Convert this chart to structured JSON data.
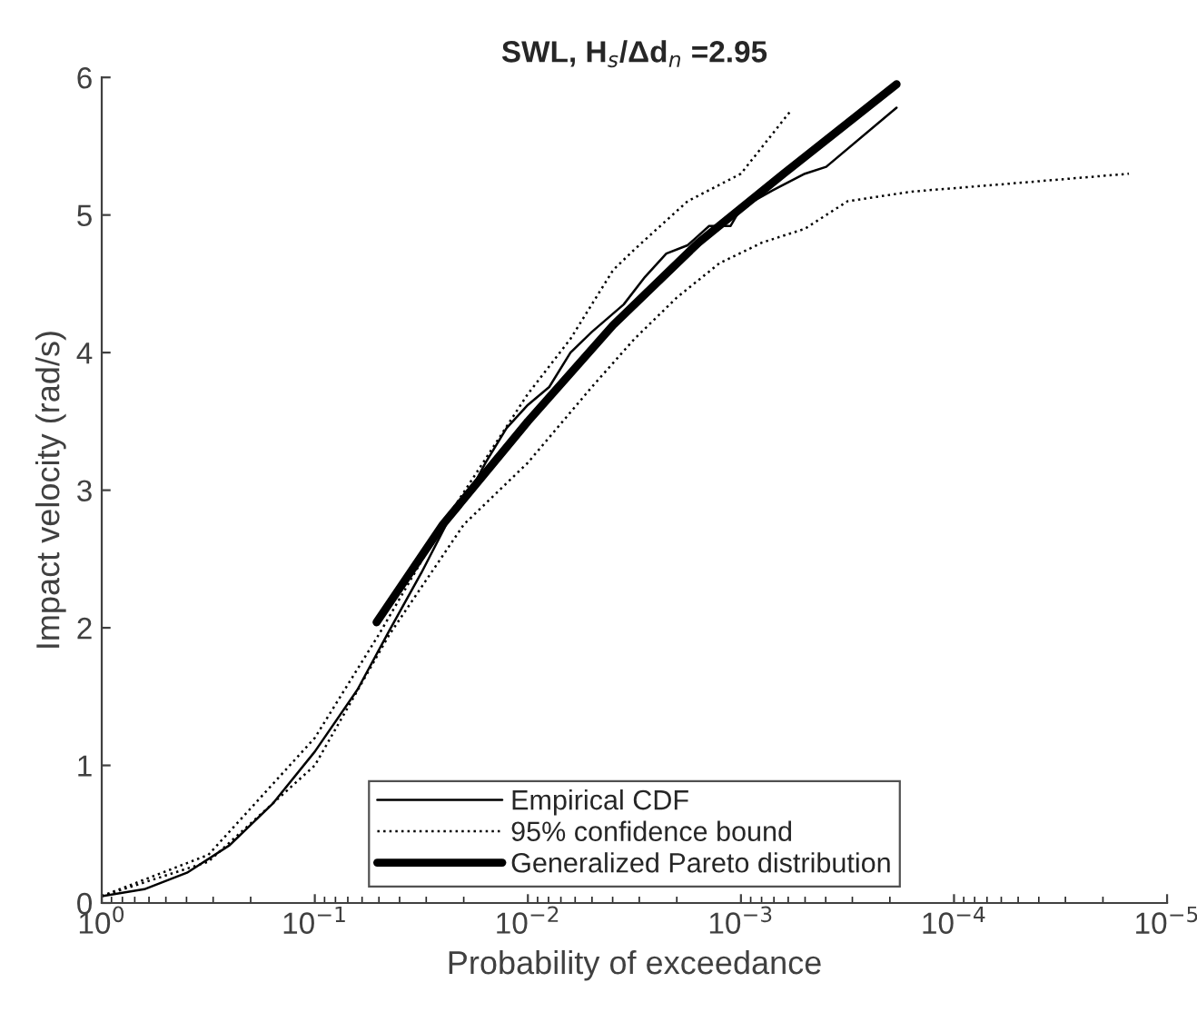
{
  "chart_data": {
    "type": "line",
    "title": "SWL, H$_{s}$/Δd$_{n}$ =2.95",
    "xlabel": "Probability of exceedance",
    "ylabel": "Impact velocity (rad/s)",
    "log": "x",
    "xlim": [
      1,
      1e-05
    ],
    "ylim": [
      0,
      6
    ],
    "xticks": [
      {
        "value": 1,
        "label": "10$^{0}$"
      },
      {
        "value": 0.1,
        "label": "10$^{−1}$"
      },
      {
        "value": 0.01,
        "label": "10$^{−2}$"
      },
      {
        "value": 0.001,
        "label": "10$^{−3}$"
      },
      {
        "value": 0.0001,
        "label": "10$^{−4}$"
      },
      {
        "value": 1e-05,
        "label": "10$^{−5}$"
      }
    ],
    "yticks": [
      0,
      1,
      2,
      3,
      4,
      5,
      6
    ],
    "grid": false,
    "legend": "bottom",
    "marker": "none",
    "series": [
      {
        "name": "Empirical CDF",
        "color": "#000000",
        "line_style": "solid",
        "x": [
          1,
          0.631,
          0.398,
          0.251,
          0.158,
          0.1,
          0.0631,
          0.0447,
          0.0316,
          0.0224,
          0.0178,
          0.0158,
          0.0126,
          0.01,
          0.00794,
          0.00631,
          0.00501,
          0.00355,
          0.00282,
          0.00224,
          0.00178,
          0.00141,
          0.00112,
          0.001,
          0.000708,
          0.000501,
          0.000398,
          0.000186
        ],
        "values": [
          0.05,
          0.1,
          0.22,
          0.42,
          0.72,
          1.1,
          1.55,
          1.98,
          2.4,
          2.85,
          3.05,
          3.2,
          3.45,
          3.62,
          3.75,
          4.0,
          4.15,
          4.35,
          4.55,
          4.72,
          4.78,
          4.92,
          4.92,
          5.05,
          5.18,
          5.3,
          5.35,
          5.78
        ]
      },
      {
        "name": "95% confidence bound",
        "color": "#000000",
        "line_style": "dotted",
        "x": [
          1,
          0.316,
          0.1,
          0.0501,
          0.0251,
          0.01,
          0.00631,
          0.00398,
          0.00316,
          0.00178,
          0.001,
          0.000589
        ],
        "values": [
          0.05,
          0.35,
          1.2,
          1.95,
          2.75,
          3.7,
          4.1,
          4.6,
          4.75,
          5.1,
          5.3,
          5.75
        ]
      },
      {
        "color": "#000000",
        "line_style": "dotted",
        "x": [
          1,
          0.316,
          0.1,
          0.0447,
          0.02,
          0.01,
          0.00501,
          0.00316,
          0.002,
          0.00126,
          0.000794,
          0.000501,
          0.000316,
          0.000158,
          6.31e-05,
          1.51e-05
        ],
        "values": [
          0.05,
          0.3,
          1.0,
          1.95,
          2.75,
          3.2,
          3.75,
          4.1,
          4.4,
          4.65,
          4.8,
          4.9,
          5.1,
          5.17,
          5.22,
          5.3
        ]
      },
      {
        "name": "Generalized Pareto distribution",
        "color": "#000000",
        "line_style": "solid",
        "x": [
          0.0513,
          0.0251,
          0.01,
          0.00398,
          0.00158,
          0.000631,
          0.000186
        ],
        "values": [
          2.04,
          2.75,
          3.5,
          4.2,
          4.8,
          5.3,
          5.95
        ]
      }
    ]
  }
}
